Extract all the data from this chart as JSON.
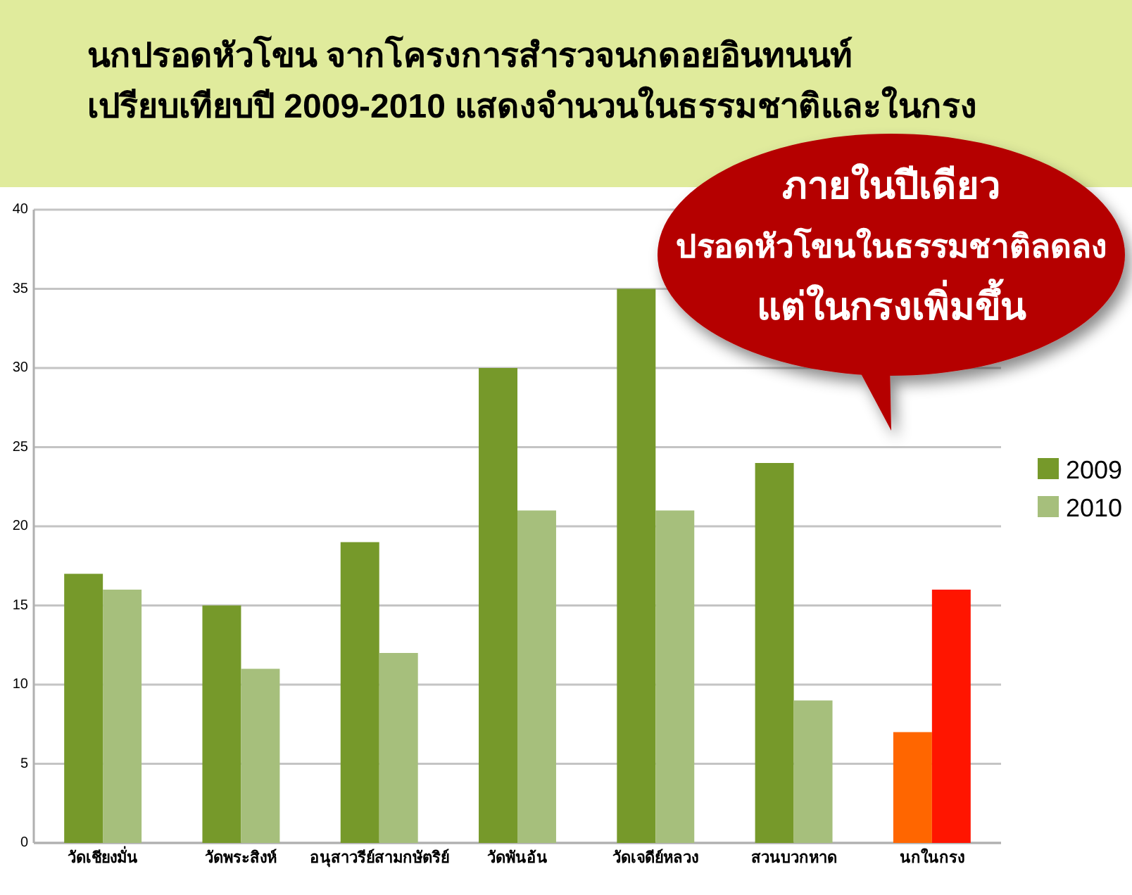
{
  "chart_data": {
    "type": "bar",
    "title": "นกปรอดหัวโขน จากโครงการสำรวจนกดอยอินทนนท์",
    "subtitle": "เปรียบเทียบปี 2009-2010 แสดงจำนวนในธรรมชาติและในกรง",
    "categories": [
      "วัดเชียงมั่น",
      "วัดพระสิงห์",
      "อนุสาวรีย์สามกษัตริย์",
      "วัดพันอ้น",
      "วัดเจดีย์หลวง",
      "สวนบวกหาด",
      "นกในกรง"
    ],
    "series": [
      {
        "name": "2009",
        "color": "#76992a",
        "colors": [
          "#76992a",
          "#76992a",
          "#76992a",
          "#76992a",
          "#76992a",
          "#76992a",
          "#ff6600"
        ],
        "values": [
          17,
          15,
          19,
          30,
          35,
          24,
          7
        ]
      },
      {
        "name": "2010",
        "color": "#a6bf7c",
        "colors": [
          "#a6bf7c",
          "#a6bf7c",
          "#a6bf7c",
          "#a6bf7c",
          "#a6bf7c",
          "#a6bf7c",
          "#ff1500"
        ],
        "values": [
          16,
          11,
          12,
          21,
          21,
          9,
          16
        ]
      }
    ],
    "ylim": [
      0,
      40
    ],
    "yticks": [
      0,
      5,
      10,
      15,
      20,
      25,
      30,
      35,
      40
    ],
    "grid": "y",
    "legend": "right",
    "annotations": [
      "ภายในปีเดียว\nปรอดหัวโขนในธรรมชาติลดลง\nแต่ในกรงเพิ่มขึ้น"
    ]
  }
}
